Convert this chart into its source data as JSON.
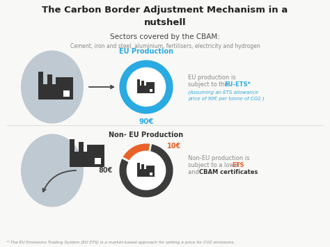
{
  "title_line1": "The Carbon Border Adjustment Mechanism in a",
  "title_line2": "nutshell",
  "subtitle": "Sectors covered by the CBAM:",
  "sectors": "Cement, iron and steel, aluminium, fertilisers, electricity and hydrogen",
  "bg_color": "#f8f8f6",
  "title_color": "#222222",
  "subtitle_color": "#444444",
  "sectors_color": "#888888",
  "eu_label": "EU Production",
  "eu_label_color": "#29aae2",
  "eu_value": "90€",
  "eu_value_color": "#29aae2",
  "eu_donut_color": "#29aae2",
  "noneu_label": "Non- EU Production",
  "noneu_label_color": "#333333",
  "noneu_value1": "10€",
  "noneu_value1_color": "#e8622a",
  "noneu_value2": "80€",
  "noneu_value2_color": "#444444",
  "noneu_donut_dark": "#3c3c3c",
  "noneu_donut_accent": "#e8622a",
  "map_color": "#bfc9d1",
  "factory_color": "#333333",
  "arrow_color": "#444444",
  "eu_text_normal": "EU production is\nsubject to the ",
  "eu_text_bold": "EU-ETS*",
  "eu_text_italic": "(Assuming an ETS allowance\nprice of 90€ per tonne of CO2 )",
  "eu_text_color": "#888888",
  "eu_text_bold_color": "#29aae2",
  "eu_text_italic_color": "#29aae2",
  "noneu_text_normal1": "Non-EU production is\nsubject to a lower ",
  "noneu_text_ets": "ETS",
  "noneu_text_and": "\nand ",
  "noneu_text_cbam": "CBAM certificates",
  "noneu_text_color": "#888888",
  "noneu_ets_color": "#e8622a",
  "noneu_cbam_color": "#333333",
  "footnote": "* The EU Emissions Trading System (EU ETS) is a market-based approach for setting a price for CO2 emissions.",
  "footnote_color": "#888888",
  "divider_color": "#e0e0e0"
}
